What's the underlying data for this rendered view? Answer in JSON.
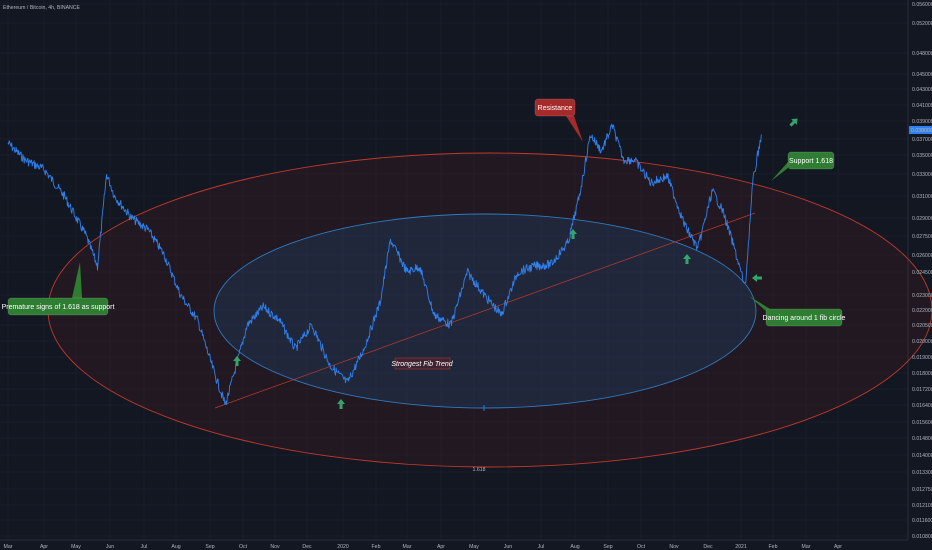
{
  "symbol_line": "Ethereum / Bitcoin, 4h, BINANCE",
  "last_price_label": "0.03800000",
  "colors": {
    "background": "#131722",
    "grid": "#1e2230",
    "price_line": "#2f80ed",
    "outer_ellipse": "#c0392b",
    "inner_ellipse": "#2e7bbf",
    "trend_line": "#c0392b",
    "arrow": "#33a56b",
    "resistance_box": "#a52a2a",
    "support_box": "#2e7d32"
  },
  "annotations": {
    "resistance": "Resistance",
    "support": "Support 1.618",
    "premature": "Premature signs of 1.618 as support",
    "dancing": "Dancing around 1 fib circle",
    "trend": "Strongest Fib Trend",
    "fib_label": "1.618"
  },
  "chart_data": {
    "type": "line",
    "title": "",
    "xlabel": "",
    "ylabel": "",
    "ylim": [
      0.0105,
      0.056
    ],
    "y_ticks": [
      "0.05600000",
      "0.05200000",
      "0.04800000",
      "0.04500000",
      "0.04300000",
      "0.04100000",
      "0.03900000",
      "0.03700000",
      "0.03500000",
      "0.03300000",
      "0.03100000",
      "0.02900000",
      "0.02750000",
      "0.02600000",
      "0.02450000",
      "0.02300000",
      "0.02200000",
      "0.02050000",
      "0.02000000",
      "0.01900000",
      "0.01800000",
      "0.01720000",
      "0.01640000",
      "0.01560000",
      "0.01480000",
      "0.01400000",
      "0.01330000",
      "0.01275000",
      "0.01210000",
      "0.01160000",
      "0.01080000"
    ],
    "x_ticks": [
      "Mar",
      "Apr",
      "May",
      "Jun",
      "Jul",
      "Aug",
      "Sep",
      "Oct",
      "Nov",
      "Dec",
      "2020",
      "Feb",
      "Mar",
      "Apr",
      "May",
      "Jun",
      "Jul",
      "Aug",
      "Sep",
      "Oct",
      "Nov",
      "Dec",
      "2021",
      "Feb",
      "Mar",
      "Apr"
    ],
    "series": [
      {
        "x": [
          "2019-03-01",
          "2019-03-15",
          "2019-04-01",
          "2019-04-20",
          "2019-05-10",
          "2019-05-20",
          "2019-05-28",
          "2019-06-05",
          "2019-06-20",
          "2019-07-05",
          "2019-07-20",
          "2019-08-05",
          "2019-08-20",
          "2019-09-05",
          "2019-09-15",
          "2019-09-25",
          "2019-10-05",
          "2019-10-20",
          "2019-11-05",
          "2019-11-20",
          "2019-12-05",
          "2019-12-20",
          "2020-01-05",
          "2020-01-20",
          "2020-02-05",
          "2020-02-15",
          "2020-03-01",
          "2020-03-12",
          "2020-03-25",
          "2020-04-10",
          "2020-04-25",
          "2020-05-10",
          "2020-05-25",
          "2020-06-10",
          "2020-06-25",
          "2020-07-10",
          "2020-07-25",
          "2020-08-05",
          "2020-08-15",
          "2020-08-25",
          "2020-09-05",
          "2020-09-15",
          "2020-09-25",
          "2020-10-10",
          "2020-10-25",
          "2020-11-10",
          "2020-11-22",
          "2020-12-05",
          "2020-12-15",
          "2020-12-25",
          "2021-01-05",
          "2021-01-12",
          "2021-01-20"
        ],
        "y": [
          0.0365,
          0.0345,
          0.0335,
          0.031,
          0.0275,
          0.025,
          0.033,
          0.031,
          0.029,
          0.028,
          0.026,
          0.023,
          0.021,
          0.018,
          0.0164,
          0.0185,
          0.0205,
          0.0222,
          0.021,
          0.0195,
          0.0205,
          0.0185,
          0.0175,
          0.0195,
          0.0225,
          0.0272,
          0.0245,
          0.025,
          0.0215,
          0.0205,
          0.0245,
          0.023,
          0.0215,
          0.0245,
          0.025,
          0.0252,
          0.027,
          0.031,
          0.0375,
          0.0355,
          0.0385,
          0.0345,
          0.0345,
          0.0322,
          0.0328,
          0.0285,
          0.0265,
          0.0315,
          0.0295,
          0.0265,
          0.0235,
          0.0322,
          0.0375
        ]
      }
    ]
  }
}
